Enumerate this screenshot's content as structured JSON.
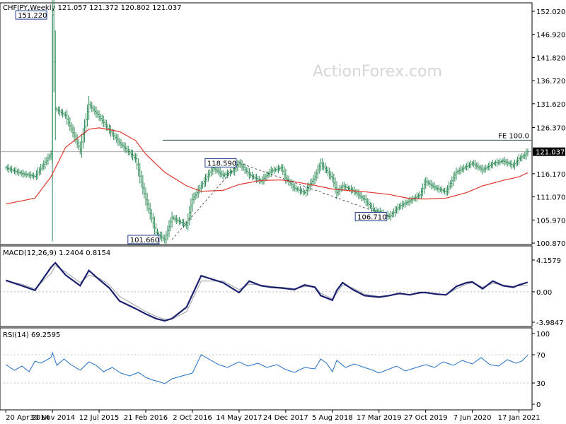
{
  "colors": {
    "bars": "#2e8b57",
    "ma": "#e0352b",
    "macd_main": "#1a1f6e",
    "macd_signal": "#9aa0a6",
    "rsi": "#1f6fc4",
    "grid": "#000000",
    "watermark": "#d9d9d9",
    "label_border": "#1f3a8a"
  },
  "chart_data": [
    {
      "type": "line",
      "title": "CHFJPY,Weekly  121.057 121.372 120.802 121.037",
      "watermark": "ActionForex.com",
      "ylim": [
        100.87,
        152.02
      ],
      "yticks": [
        "152.020",
        "146.920",
        "141.820",
        "136.720",
        "131.620",
        "126.370",
        "121.037",
        "116.170",
        "111.070",
        "105.970",
        "100.870"
      ],
      "xticks": [
        "20 Apr 2014",
        "30 Nov 2014",
        "12 Jul 2015",
        "21 Feb 2016",
        "2 Oct 2016",
        "14 May 2017",
        "24 Dec 2017",
        "5 Aug 2018",
        "17 Mar 2019",
        "27 Oct 2019",
        "7 Jun 2020",
        "17 Jan 2021"
      ],
      "last_price": "121.037",
      "fe_line": {
        "label": "FE 100.0",
        "value": 123.57
      },
      "annotations": [
        {
          "text": "151.220",
          "value": 151.22
        },
        {
          "text": "101.660",
          "value": 101.66
        },
        {
          "text": "118.590",
          "value": 118.59
        },
        {
          "text": "106.710",
          "value": 106.71
        }
      ],
      "series": [
        {
          "kind": "price",
          "x": [
            "2014-04-20",
            "2014-07-06",
            "2014-09-07",
            "2014-11-23",
            "2014-11-30",
            "2014-12-14",
            "2015-02-01",
            "2015-04-12",
            "2015-05-24",
            "2015-07-12",
            "2015-08-30",
            "2015-10-18",
            "2016-01-03",
            "2016-02-21",
            "2016-04-10",
            "2016-05-22",
            "2016-06-26",
            "2016-09-04",
            "2016-10-02",
            "2016-11-13",
            "2017-01-08",
            "2017-02-26",
            "2017-04-16",
            "2017-05-14",
            "2017-07-02",
            "2017-08-27",
            "2017-10-15",
            "2017-12-03",
            "2017-12-24",
            "2018-02-04",
            "2018-03-25",
            "2018-05-13",
            "2018-06-10",
            "2018-08-05",
            "2018-08-26",
            "2018-09-23",
            "2018-11-11",
            "2019-01-06",
            "2019-02-17",
            "2019-03-17",
            "2019-05-05",
            "2019-06-23",
            "2019-08-11",
            "2019-09-29",
            "2019-10-27",
            "2019-12-15",
            "2020-02-02",
            "2020-03-22",
            "2020-05-10",
            "2020-06-07",
            "2020-07-26",
            "2020-09-13",
            "2020-11-01",
            "2020-12-20",
            "2021-01-17",
            "2021-02-14",
            "2021-02-28"
          ],
          "values": [
            117.5,
            116.2,
            115.6,
            120.5,
            151.22,
            130.5,
            129.0,
            121.5,
            131.5,
            128.8,
            125.8,
            123.0,
            119.5,
            110.5,
            103.2,
            101.66,
            106.5,
            104.8,
            110.5,
            113.5,
            117.5,
            115.8,
            116.8,
            118.59,
            116.0,
            114.5,
            116.8,
            117.5,
            115.2,
            113.0,
            112.0,
            115.5,
            118.5,
            115.2,
            112.0,
            113.5,
            112.5,
            110.5,
            108.2,
            107.8,
            106.71,
            109.0,
            110.2,
            111.5,
            114.5,
            113.0,
            112.2,
            116.5,
            117.8,
            118.5,
            117.0,
            118.4,
            119.0,
            118.0,
            119.5,
            120.3,
            121.037
          ]
        },
        {
          "kind": "ma",
          "x": [
            "2014-04-20",
            "2014-07-06",
            "2014-09-07",
            "2014-11-23",
            "2015-02-01",
            "2015-05-24",
            "2015-07-12",
            "2015-10-18",
            "2016-01-03",
            "2016-02-21",
            "2016-05-22",
            "2016-09-04",
            "2016-11-13",
            "2017-02-26",
            "2017-05-14",
            "2017-08-27",
            "2017-12-03",
            "2018-02-04",
            "2018-05-13",
            "2018-08-05",
            "2018-11-11",
            "2019-01-06",
            "2019-05-05",
            "2019-08-11",
            "2019-10-27",
            "2020-02-02",
            "2020-05-10",
            "2020-07-26",
            "2020-11-01",
            "2021-01-17",
            "2021-02-28"
          ],
          "values": [
            109.5,
            110.2,
            110.8,
            115.5,
            122.0,
            126.0,
            126.3,
            125.5,
            123.5,
            120.5,
            116.5,
            113.5,
            112.3,
            112.5,
            113.8,
            114.7,
            114.8,
            114.4,
            113.6,
            112.8,
            112.4,
            112.2,
            111.6,
            110.7,
            110.6,
            110.8,
            112.0,
            113.5,
            114.7,
            115.5,
            116.4
          ]
        },
        {
          "kind": "wave",
          "x": [
            "2016-06-26",
            "2017-05-14",
            "2019-05-05"
          ],
          "values": [
            101.66,
            118.59,
            106.71
          ]
        }
      ]
    },
    {
      "type": "line",
      "title": "MACD(12,26,9) 1.2404 0.8154",
      "ylim": [
        -3.9847,
        4.1579
      ],
      "yticks": [
        "4.1579",
        "0.00",
        "-3.9847"
      ],
      "series": [
        {
          "name": "MACD",
          "x": [
            "2014-04-20",
            "2014-07-06",
            "2014-09-07",
            "2014-11-23",
            "2014-12-14",
            "2015-02-01",
            "2015-04-12",
            "2015-05-24",
            "2015-07-12",
            "2015-08-30",
            "2015-10-18",
            "2016-01-03",
            "2016-02-21",
            "2016-04-10",
            "2016-05-22",
            "2016-06-26",
            "2016-09-04",
            "2016-11-13",
            "2017-02-26",
            "2017-05-14",
            "2017-07-02",
            "2017-08-27",
            "2017-10-15",
            "2017-12-03",
            "2018-02-04",
            "2018-03-25",
            "2018-05-13",
            "2018-06-10",
            "2018-08-05",
            "2018-08-26",
            "2018-09-23",
            "2018-11-11",
            "2019-01-06",
            "2019-03-17",
            "2019-05-05",
            "2019-06-23",
            "2019-08-11",
            "2019-09-29",
            "2019-10-27",
            "2019-12-15",
            "2020-02-02",
            "2020-03-22",
            "2020-05-10",
            "2020-06-07",
            "2020-07-26",
            "2020-09-13",
            "2020-11-01",
            "2020-12-20",
            "2021-01-17",
            "2021-02-28"
          ],
          "values": [
            1.5,
            0.8,
            0.2,
            3.2,
            3.8,
            2.2,
            0.8,
            2.8,
            1.6,
            0.5,
            -1.2,
            -2.2,
            -2.9,
            -3.5,
            -3.8,
            -3.5,
            -2.0,
            2.1,
            1.2,
            -0.1,
            1.4,
            0.8,
            0.6,
            0.5,
            0.3,
            0.9,
            0.6,
            -0.5,
            -1.1,
            0.2,
            1.2,
            0.3,
            -0.5,
            -0.7,
            -0.5,
            -0.2,
            -0.4,
            -0.1,
            -0.1,
            -0.3,
            -0.4,
            0.7,
            1.2,
            1.3,
            0.4,
            1.4,
            0.8,
            0.6,
            0.9,
            1.2404
          ]
        },
        {
          "name": "Signal",
          "x": [
            "2014-04-20",
            "2014-07-06",
            "2014-09-07",
            "2014-11-23",
            "2014-12-14",
            "2015-02-01",
            "2015-04-12",
            "2015-05-24",
            "2015-07-12",
            "2015-08-30",
            "2015-10-18",
            "2016-01-03",
            "2016-02-21",
            "2016-04-10",
            "2016-05-22",
            "2016-06-26",
            "2016-09-04",
            "2016-11-13",
            "2017-02-26",
            "2017-05-14",
            "2017-07-02",
            "2017-08-27",
            "2017-10-15",
            "2017-12-03",
            "2018-02-04",
            "2018-03-25",
            "2018-05-13",
            "2018-06-10",
            "2018-08-05",
            "2018-08-26",
            "2018-09-23",
            "2018-11-11",
            "2019-01-06",
            "2019-03-17",
            "2019-05-05",
            "2019-06-23",
            "2019-08-11",
            "2019-09-29",
            "2019-10-27",
            "2019-12-15",
            "2020-02-02",
            "2020-03-22",
            "2020-05-10",
            "2020-06-07",
            "2020-07-26",
            "2020-09-13",
            "2020-11-01",
            "2020-12-20",
            "2021-01-17",
            "2021-02-28"
          ],
          "values": [
            1.4,
            1.0,
            0.4,
            2.4,
            3.4,
            2.6,
            1.2,
            2.2,
            1.8,
            0.9,
            -0.6,
            -1.8,
            -2.6,
            -3.2,
            -3.6,
            -3.6,
            -2.6,
            1.4,
            1.4,
            0.3,
            1.0,
            0.9,
            0.7,
            0.6,
            0.4,
            0.7,
            0.7,
            -0.2,
            -0.9,
            -0.2,
            0.9,
            0.5,
            -0.3,
            -0.6,
            -0.5,
            -0.3,
            -0.4,
            -0.2,
            -0.1,
            -0.2,
            -0.4,
            0.4,
            1.0,
            1.2,
            0.6,
            1.1,
            0.9,
            0.7,
            0.8,
            0.8154
          ]
        }
      ]
    },
    {
      "type": "line",
      "title": "RSI(14) 69.2595",
      "ylim": [
        0,
        100
      ],
      "yticks": [
        "100",
        "70",
        "30",
        "0"
      ],
      "series": [
        {
          "name": "RSI(14)",
          "x": [
            "2014-04-20",
            "2014-06-01",
            "2014-07-06",
            "2014-08-10",
            "2014-09-07",
            "2014-10-05",
            "2014-11-23",
            "2014-11-30",
            "2014-12-21",
            "2015-01-25",
            "2015-02-22",
            "2015-04-12",
            "2015-05-24",
            "2015-06-28",
            "2015-08-02",
            "2015-09-13",
            "2015-10-25",
            "2015-12-06",
            "2016-01-17",
            "2016-02-21",
            "2016-03-27",
            "2016-04-24",
            "2016-05-22",
            "2016-06-26",
            "2016-08-14",
            "2016-10-02",
            "2016-11-13",
            "2016-12-25",
            "2017-02-05",
            "2017-03-19",
            "2017-05-14",
            "2017-06-25",
            "2017-08-13",
            "2017-09-24",
            "2017-11-12",
            "2017-12-24",
            "2018-02-04",
            "2018-03-25",
            "2018-05-13",
            "2018-06-10",
            "2018-07-08",
            "2018-08-05",
            "2018-08-26",
            "2018-10-07",
            "2018-11-18",
            "2019-01-06",
            "2019-02-17",
            "2019-03-17",
            "2019-04-28",
            "2019-06-09",
            "2019-07-21",
            "2019-09-01",
            "2019-10-27",
            "2019-12-08",
            "2020-01-19",
            "2020-03-08",
            "2020-04-19",
            "2020-06-07",
            "2020-07-19",
            "2020-08-30",
            "2020-10-11",
            "2020-11-22",
            "2021-01-03",
            "2021-01-31",
            "2021-02-28"
          ],
          "values": [
            56,
            48,
            54,
            46,
            61,
            58,
            66,
            73,
            55,
            64,
            57,
            48,
            60,
            55,
            46,
            52,
            44,
            40,
            45,
            38,
            34,
            32,
            29,
            36,
            40,
            44,
            70,
            63,
            56,
            52,
            60,
            54,
            58,
            52,
            56,
            49,
            45,
            52,
            50,
            64,
            58,
            46,
            62,
            52,
            57,
            52,
            48,
            44,
            49,
            54,
            47,
            51,
            56,
            52,
            60,
            55,
            62,
            57,
            66,
            56,
            54,
            63,
            58,
            61,
            69.26
          ]
        }
      ]
    }
  ]
}
